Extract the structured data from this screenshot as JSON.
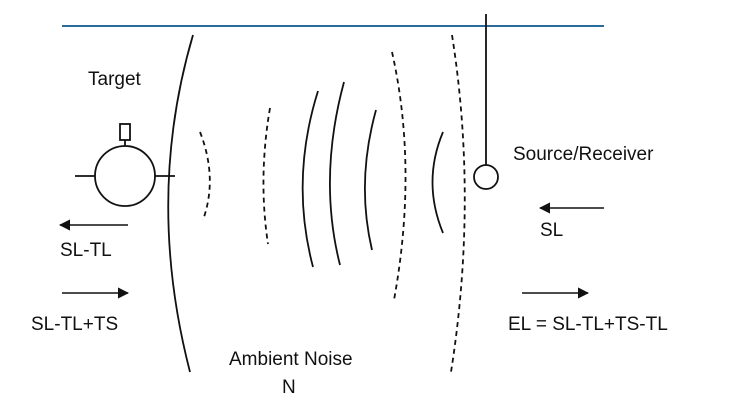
{
  "labels": {
    "target": "Target",
    "source_receiver": "Source/Receiver",
    "sl": "SL",
    "sl_tl": "SL-TL",
    "sl_tl_ts": "SL-TL+TS",
    "el_equation": "EL = SL-TL+TS-TL",
    "ambient_noise": "Ambient Noise",
    "noise_symbol": "N"
  },
  "colors": {
    "surface_line": "#2a6b9c",
    "stroke": "#111111"
  },
  "arrow_directions": {
    "sl_arrow": "left",
    "sl_tl_arrow": "left",
    "sl_tl_ts_arrow": "right",
    "el_arrow": "right"
  }
}
